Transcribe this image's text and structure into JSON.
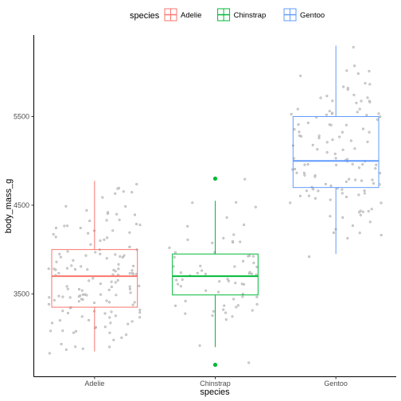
{
  "chart_data": {
    "type": "box",
    "xlabel": "species",
    "ylabel": "body_mass_g",
    "categories": [
      "Adelie",
      "Chinstrap",
      "Gentoo"
    ],
    "ylim": [
      2570,
      6420
    ],
    "y_ticks": [
      3500,
      4500,
      5500
    ],
    "grid": false,
    "legend": {
      "title": "species",
      "position": "top",
      "entries": [
        "Adelie",
        "Chinstrap",
        "Gentoo"
      ]
    },
    "colors": {
      "Adelie": "#F8766D",
      "Chinstrap": "#00BA38",
      "Gentoo": "#619CFF",
      "points": "#9a9a9a"
    },
    "boxes": [
      {
        "name": "Adelie",
        "min": 2850,
        "q1": 3350,
        "median": 3700,
        "q3": 4000,
        "max": 4775,
        "outliers": []
      },
      {
        "name": "Chinstrap",
        "min": 2900,
        "q1": 3488,
        "median": 3700,
        "q3": 3950,
        "max": 4550,
        "outliers": [
          4800,
          2700
        ]
      },
      {
        "name": "Gentoo",
        "min": 3950,
        "q1": 4700,
        "median": 5000,
        "q3": 5500,
        "max": 6300,
        "outliers": []
      }
    ],
    "jitter_points": {
      "Adelie": [
        3750,
        3800,
        3250,
        3450,
        3650,
        3625,
        4675,
        3475,
        4250,
        3300,
        3700,
        3200,
        3800,
        4400,
        3700,
        3450,
        4500,
        3325,
        4200,
        3400,
        3600,
        3800,
        3950,
        3800,
        3800,
        3550,
        3200,
        3150,
        3950,
        3250,
        3550,
        3300,
        4650,
        3150,
        3900,
        3100,
        4400,
        3000,
        4600,
        3425,
        2975,
        3450,
        4150,
        3500,
        4300,
        3450,
        4050,
        2900,
        3700,
        3550,
        3800,
        2850,
        3750,
        3150,
        4400,
        3600,
        4050,
        2850,
        3950,
        3350,
        4100,
        3050,
        4450,
        3600,
        3900,
        3550,
        4150,
        3700,
        4250,
        3700,
        3900,
        3550,
        4000,
        3200,
        4700,
        3800,
        4200,
        3350,
        3550,
        3800,
        3500,
        3950,
        3600,
        3550,
        4300,
        3400,
        4450,
        3300,
        4300,
        3700,
        4350,
        2900,
        4100,
        3725,
        4725,
        3075,
        4250,
        2925,
        3550,
        3750,
        3900,
        3175,
        4775,
        3825,
        4600,
        3200,
        4275,
        3900,
        4075,
        2900,
        3775,
        3350,
        3325,
        3150,
        3500,
        3450,
        3875,
        3050,
        4000,
        3275,
        4300,
        3050,
        4000,
        3325,
        3500,
        3500,
        4475,
        3425,
        3900,
        3175,
        3975,
        3400,
        4250,
        3400,
        3475,
        3050,
        3725,
        3000,
        3650,
        4250,
        3475,
        3450,
        3750,
        3700,
        4000
      ],
      "Chinstrap": [
        3500,
        3900,
        3650,
        3525,
        3725,
        3950,
        3250,
        3750,
        4150,
        3700,
        3800,
        3775,
        3700,
        4050,
        3575,
        4050,
        3300,
        3700,
        3450,
        4400,
        3600,
        3400,
        2900,
        3800,
        3300,
        4150,
        3400,
        3800,
        3700,
        4550,
        3200,
        4300,
        3350,
        4100,
        3600,
        3900,
        3850,
        4800,
        2700,
        4500,
        3950,
        3650,
        3550,
        3500,
        3675,
        4450,
        3400,
        4300,
        3250,
        3675,
        3325,
        3950,
        3600,
        4050,
        3350,
        3450,
        3250,
        4050,
        3800,
        3525,
        3950,
        3650,
        3650,
        4000,
        3400,
        3775,
        4100,
        3775
      ],
      "Gentoo": [
        4500,
        5700,
        4450,
        5700,
        5400,
        4550,
        4800,
        5200,
        4400,
        5150,
        4650,
        5550,
        4650,
        5850,
        4200,
        5850,
        4150,
        6300,
        4800,
        5350,
        5700,
        5000,
        4400,
        5050,
        5000,
        5100,
        4100,
        5650,
        4600,
        5550,
        5250,
        4700,
        5050,
        6050,
        5150,
        5400,
        4950,
        5250,
        4350,
        5350,
        3950,
        5700,
        4300,
        4750,
        5550,
        4900,
        4200,
        5400,
        5100,
        5300,
        4850,
        5300,
        4400,
        5000,
        4900,
        5050,
        4300,
        5000,
        4450,
        5550,
        4200,
        5300,
        4400,
        5650,
        4700,
        5700,
        4650,
        5800,
        4700,
        5550,
        4750,
        5000,
        5100,
        5200,
        4700,
        5800,
        4600,
        6000,
        4750,
        5950,
        4625,
        5450,
        4725,
        5350,
        4750,
        5600,
        4600,
        5300,
        4875,
        5550,
        4950,
        5400,
        4750,
        5650,
        4850,
        5200,
        4925,
        4875,
        4625,
        5250,
        4850,
        5600,
        4975,
        5500,
        4725,
        5500,
        4700,
        5500,
        4575,
        5500,
        5000,
        5950,
        4650,
        5500,
        4375,
        5850,
        4875,
        6000,
        4925,
        4850,
        5750,
        5200,
        5400
      ]
    }
  }
}
